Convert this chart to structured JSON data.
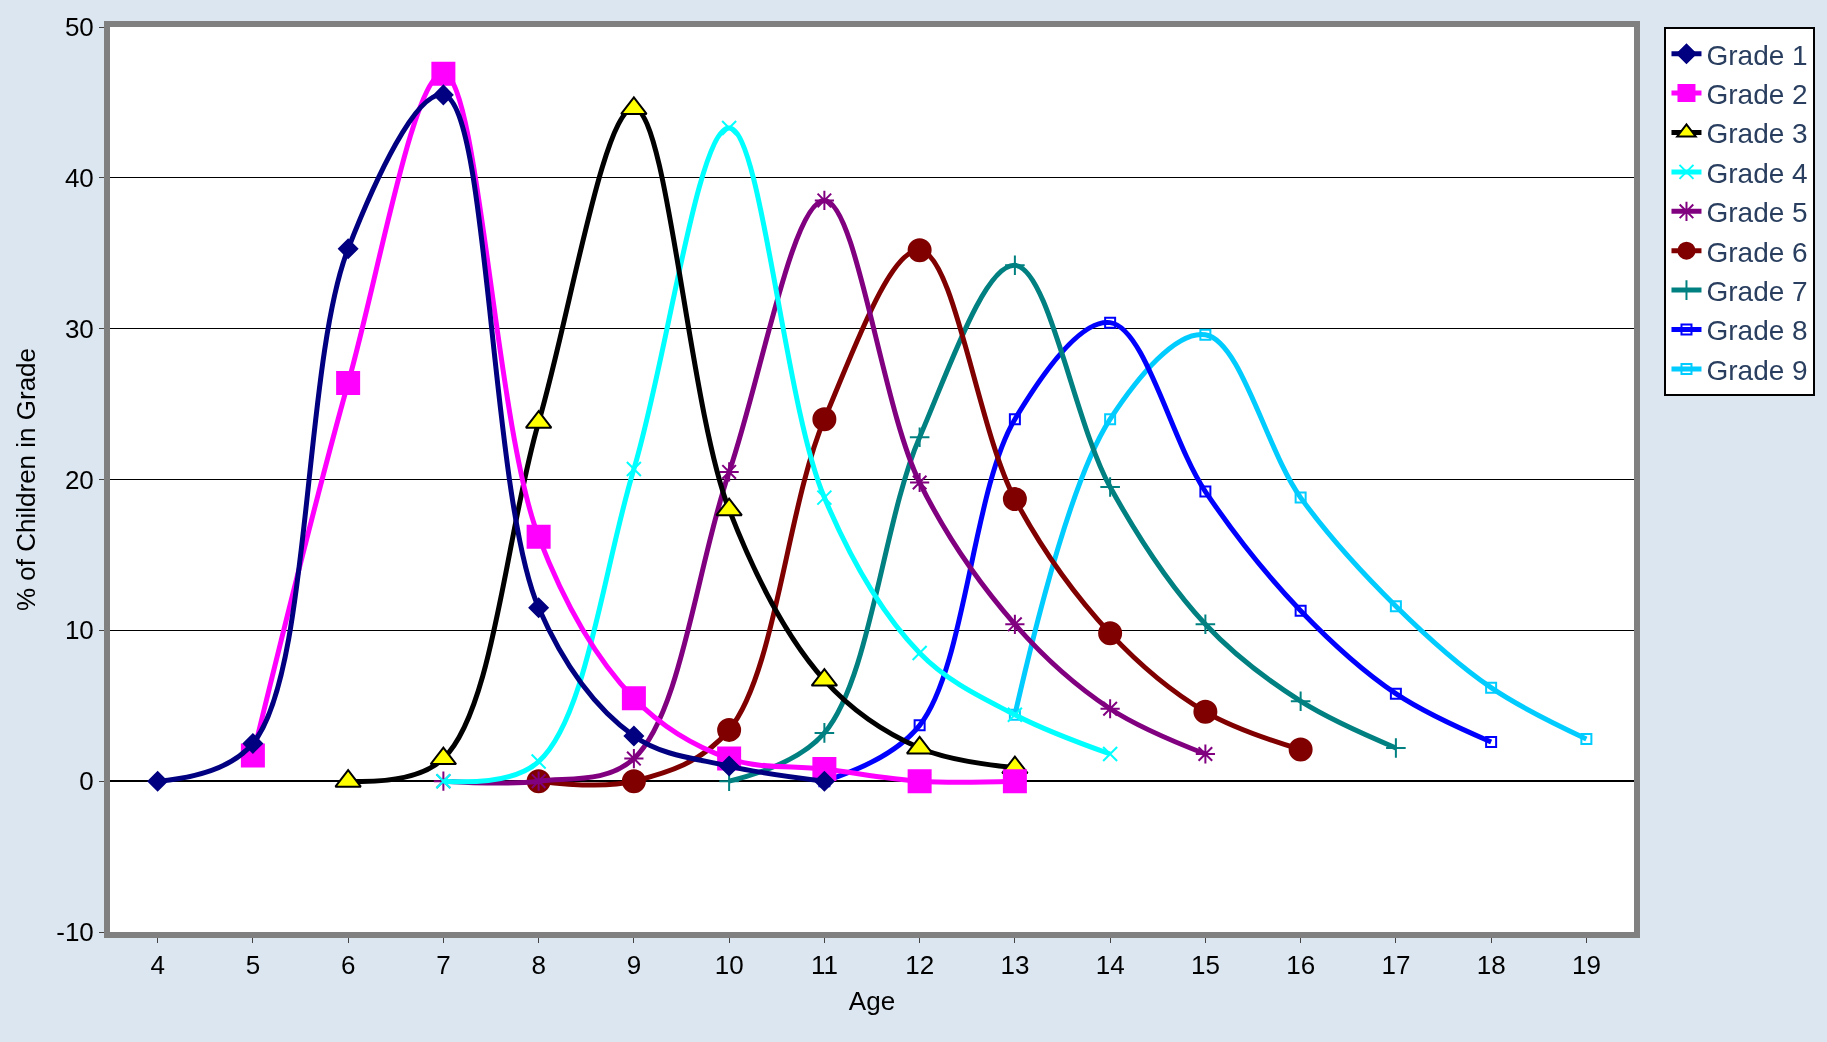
{
  "chart_data": {
    "type": "line",
    "xlabel": "Age",
    "ylabel": "% of Children in Grade",
    "xlim": [
      3.5,
      19.5
    ],
    "ylim": [
      -10,
      50
    ],
    "xticks": [
      4,
      5,
      6,
      7,
      8,
      9,
      10,
      11,
      12,
      13,
      14,
      15,
      16,
      17,
      18,
      19
    ],
    "yticks": [
      -10,
      0,
      10,
      20,
      30,
      40,
      50
    ],
    "grid": "y",
    "legend": "right",
    "series": [
      {
        "name": "Grade 1",
        "color": "#000080",
        "marker": "diamond",
        "x": [
          4,
          5,
          6,
          7,
          8,
          9,
          10,
          11
        ],
        "values": [
          0,
          2.5,
          35.3,
          45.5,
          11.5,
          3,
          1,
          0
        ]
      },
      {
        "name": "Grade 2",
        "color": "#ff00ff",
        "marker": "square",
        "x": [
          5,
          6,
          7,
          8,
          9,
          10,
          11,
          12,
          13
        ],
        "values": [
          1.7,
          26.4,
          46.9,
          16.2,
          5.5,
          1.5,
          0.8,
          0,
          0
        ]
      },
      {
        "name": "Grade 3",
        "color": "#000000",
        "marker": "triangle",
        "x": [
          6,
          7,
          8,
          9,
          10,
          11,
          12,
          13
        ],
        "values": [
          0,
          1.5,
          23.8,
          44.6,
          18,
          6.7,
          2.2,
          0.9
        ]
      },
      {
        "name": "Grade 4",
        "color": "#00ffff",
        "marker": "cross",
        "x": [
          7,
          8,
          9,
          10,
          11,
          12,
          13,
          14
        ],
        "values": [
          0,
          1.3,
          20.7,
          43.3,
          18.8,
          8.5,
          4.4,
          1.8
        ]
      },
      {
        "name": "Grade 5",
        "color": "#800080",
        "marker": "cross",
        "x": [
          7,
          8,
          9,
          10,
          11,
          12,
          13,
          14,
          15
        ],
        "values": [
          0,
          0,
          1.5,
          20.5,
          38.5,
          19.8,
          10.4,
          4.8,
          1.8
        ]
      },
      {
        "name": "Grade 6",
        "color": "#800000",
        "marker": "circle",
        "x": [
          8,
          9,
          10,
          11,
          12,
          13,
          14,
          15,
          16
        ],
        "values": [
          0,
          0,
          3.4,
          24,
          35.2,
          18.7,
          9.8,
          4.6,
          2.1
        ]
      },
      {
        "name": "Grade 7",
        "color": "#008080",
        "marker": "cross",
        "x": [
          10,
          11,
          12,
          13,
          14,
          15,
          16,
          17
        ],
        "values": [
          0,
          3.2,
          22.8,
          34.2,
          19.5,
          10.4,
          5.3,
          2.2
        ]
      },
      {
        "name": "Grade 8",
        "color": "#0000ff",
        "marker": "square",
        "x": [
          11,
          12,
          13,
          14,
          15,
          16,
          17,
          18
        ],
        "values": [
          0,
          3.7,
          24,
          30.4,
          19.2,
          11.3,
          5.8,
          2.6
        ]
      },
      {
        "name": "Grade 9",
        "color": "#00ccff",
        "marker": "square",
        "x": [
          13,
          14,
          15,
          16,
          17,
          18,
          19
        ],
        "values": [
          4.4,
          24,
          29.6,
          18.8,
          11.6,
          6.2,
          2.8
        ]
      }
    ]
  }
}
